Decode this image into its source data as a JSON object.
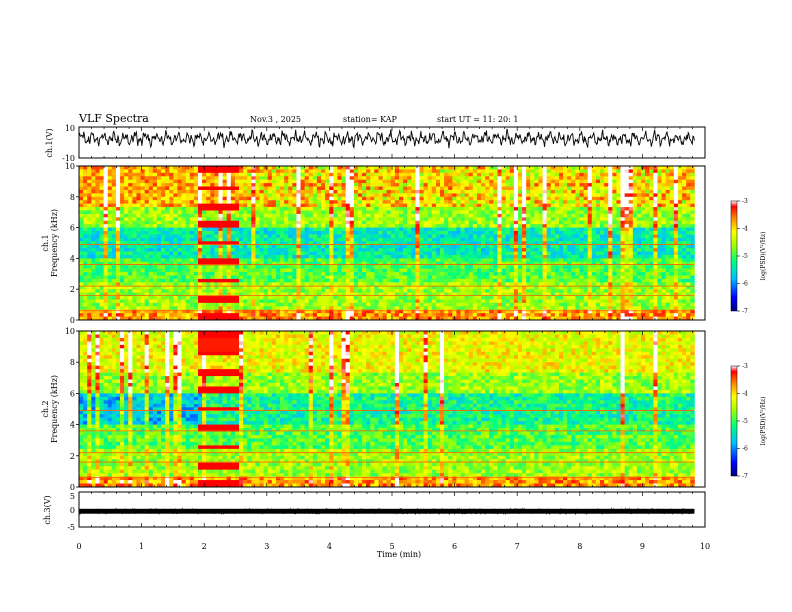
{
  "header": {
    "title": "VLF Spectra",
    "date": "Nov.3 , 2025",
    "station": "station= KAP",
    "start": "start UT = 11: 20: 1"
  },
  "chart_data": [
    {
      "type": "line",
      "name": "ch1-waveform",
      "ylabel": "ch.1(V)",
      "ylim": [
        -10,
        10
      ],
      "ytick_labels": [
        "10",
        "-10"
      ],
      "xlim": [
        0,
        9.83
      ],
      "description_series": "voltage waveform"
    },
    {
      "type": "heatmap",
      "name": "ch1-spectrogram",
      "ylabel": "ch.1\nFrequency (kHz)",
      "ylabel_line1": "ch.1",
      "ylabel_line2": "Frequency (kHz)",
      "ylim": [
        0,
        10
      ],
      "ytick_labels": [
        "0",
        "2",
        "4",
        "6",
        "8",
        "10"
      ],
      "xlim": [
        0,
        9.83
      ],
      "colorbar": {
        "label": "log(PSD)(V²/Hz)",
        "range": [
          -7,
          -3
        ],
        "tick_labels": [
          "-3",
          "-4",
          "-5",
          "-6",
          "-7"
        ]
      }
    },
    {
      "type": "heatmap",
      "name": "ch2-spectrogram",
      "ylabel": "ch.2\nFrequency (kHz)",
      "ylabel_line1": "ch.2",
      "ylabel_line2": "Frequency (kHz)",
      "ylim": [
        0,
        10
      ],
      "ytick_labels": [
        "0",
        "2",
        "4",
        "6",
        "8",
        "10"
      ],
      "xlim": [
        0,
        9.83
      ],
      "colorbar": {
        "label": "log(PSD)(V²/Hz)",
        "range": [
          -7,
          -3
        ],
        "tick_labels": [
          "-3",
          "-4",
          "-5",
          "-6",
          "-7"
        ]
      }
    },
    {
      "type": "line",
      "name": "ch3-waveform",
      "ylabel": "ch.3(V)",
      "ylim": [
        -5,
        5
      ],
      "ytick_labels": [
        "5",
        "0",
        "-5"
      ],
      "xlim": [
        0,
        9.83
      ],
      "xlabel": "Time (min)",
      "xtick_labels": [
        "0",
        "1",
        "2",
        "3",
        "4",
        "5",
        "6",
        "7",
        "8",
        "9",
        "10"
      ],
      "xrange": [
        0,
        10
      ]
    }
  ],
  "colors": {
    "axis": "#000000",
    "waveform": "#000000"
  }
}
